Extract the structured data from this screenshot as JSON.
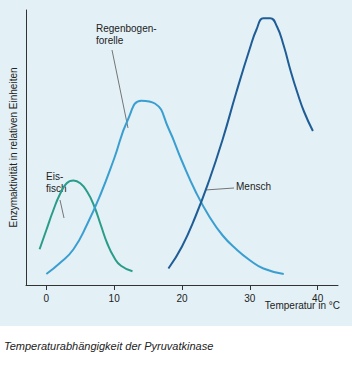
{
  "chart_data": {
    "type": "line",
    "title": "Temperaturabhängigkeit der Pyruvatkinase",
    "x_label": "Temperatur in °C",
    "y_label": "Enzymaktivität in relativen Einheiten",
    "xlim": [
      -3,
      43
    ],
    "xticks": [
      0,
      10,
      20,
      30,
      40
    ],
    "ylim": [
      0,
      100
    ],
    "tick_labels": "x",
    "grid": false,
    "series": [
      {
        "name": "Eis-\nfisch",
        "color": "#2a9d8a",
        "x": [
          -1,
          0,
          1,
          2,
          3,
          4,
          5,
          6,
          7,
          8,
          9,
          10,
          11,
          12.7
        ],
        "values": [
          13,
          20,
          27,
          33,
          37,
          38,
          37,
          34,
          29,
          22,
          15,
          10,
          7,
          5
        ]
      },
      {
        "name": "Regenbogen-\nforelle",
        "color": "#3a9fd0",
        "x": [
          0,
          2,
          4,
          6,
          8,
          10,
          12,
          14,
          16,
          18,
          20,
          22,
          24,
          26,
          28,
          30,
          32,
          35
        ],
        "values": [
          4,
          8,
          13,
          22,
          33,
          46,
          60,
          67,
          66,
          57,
          45,
          34,
          25,
          18,
          13,
          9,
          6,
          4
        ]
      },
      {
        "name": "Mensch",
        "color": "#1f5d96",
        "x": [
          18,
          20,
          22,
          24,
          26,
          28,
          30,
          31,
          32,
          33,
          34,
          35,
          36,
          37,
          38,
          39.3
        ],
        "values": [
          6,
          14,
          25,
          38,
          53,
          70,
          86,
          93,
          97,
          97,
          94,
          87,
          78,
          70,
          63,
          56
        ]
      }
    ]
  }
}
